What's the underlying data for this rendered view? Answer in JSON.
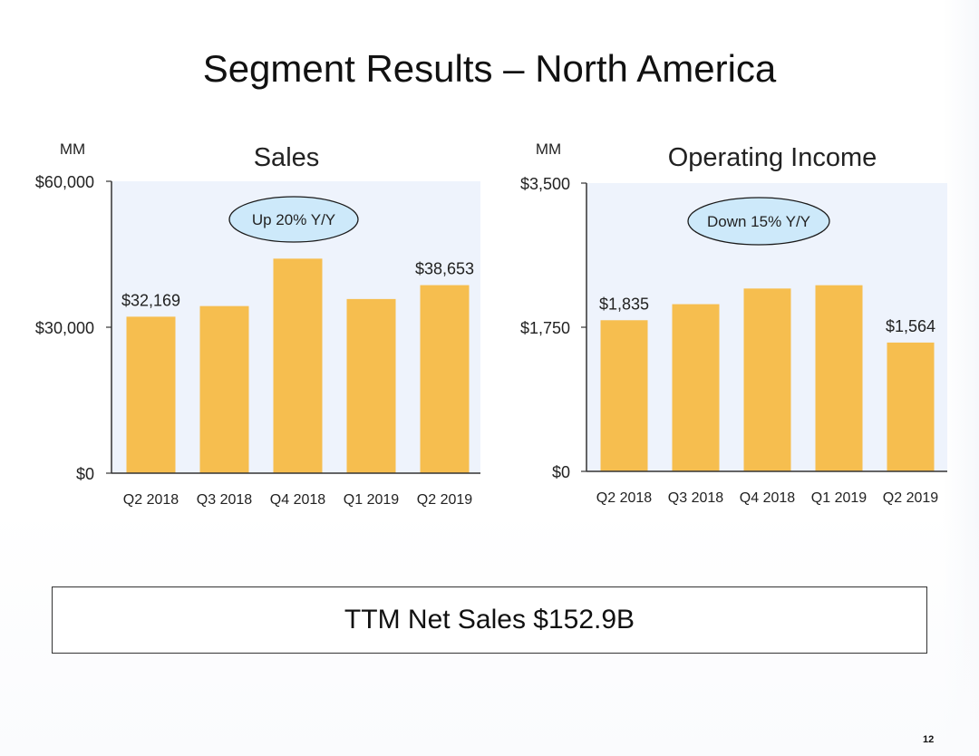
{
  "slide": {
    "title": "Segment Results – North America",
    "summary": "TTM Net Sales $152.9B",
    "page_number": "12"
  },
  "chart_data": [
    {
      "type": "bar",
      "title": "Sales",
      "unit_label": "MM",
      "categories": [
        "Q2 2018",
        "Q3 2018",
        "Q4 2018",
        "Q1 2019",
        "Q2 2019"
      ],
      "values": [
        32169,
        34350,
        44100,
        35800,
        38653
      ],
      "yticks": [
        "$0",
        "$30,000",
        "$60,000"
      ],
      "ylim": [
        0,
        60000
      ],
      "data_labels": [
        "$32,169",
        "",
        "",
        "",
        "$38,653"
      ],
      "callout": "Up 20% Y/Y",
      "colors": {
        "bar": "#F6BE4F",
        "plot_bg": "#EEF3FC",
        "callout_fill": "#CDE9FA"
      }
    },
    {
      "type": "bar",
      "title": "Operating Income",
      "unit_label": "MM",
      "categories": [
        "Q2 2018",
        "Q3 2018",
        "Q4 2018",
        "Q1 2019",
        "Q2 2019"
      ],
      "values": [
        1835,
        2030,
        2220,
        2260,
        1564
      ],
      "yticks": [
        "$0",
        "$1,750",
        "$3,500"
      ],
      "ylim": [
        0,
        3500
      ],
      "data_labels": [
        "$1,835",
        "",
        "",
        "",
        "$1,564"
      ],
      "callout": "Down 15% Y/Y",
      "colors": {
        "bar": "#F6BE4F",
        "plot_bg": "#EEF3FC",
        "callout_fill": "#CDE9FA"
      }
    }
  ]
}
